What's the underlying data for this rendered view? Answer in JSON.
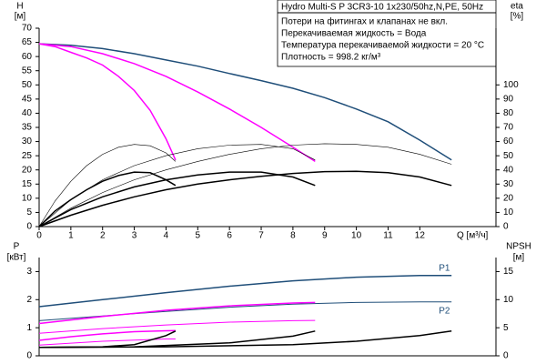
{
  "chart_data": [
    {
      "type": "line",
      "title": "Hydro Multi-S P 3CR3-10 1x230/50hz,N,PE, 50Hz",
      "notes": [
        "Потери на фитингах и клапанах не вкл.",
        "Перекачиваемая жидкость = Вода",
        "Температура перекачиваемой жидкости = 20 °C",
        "Плотность = 998.2 кг/м³"
      ],
      "ylabel": [
        "H",
        "[м]"
      ],
      "y2label": [
        "eta",
        "[%]"
      ],
      "xlabel": "Q [м³/ч]",
      "xlim": [
        0,
        14.4
      ],
      "xticks": [
        0,
        1,
        2,
        3,
        4,
        5,
        6,
        7,
        8,
        9,
        10,
        11,
        12
      ],
      "ylim": [
        0,
        70
      ],
      "yticks": [
        0,
        5,
        10,
        15,
        20,
        25,
        30,
        35,
        40,
        45,
        50,
        55,
        60,
        65,
        70
      ],
      "y2lim": [
        0,
        140
      ],
      "y2ticks": [
        0,
        10,
        20,
        30,
        40,
        50,
        60,
        70,
        80,
        90,
        100
      ],
      "series": [
        {
          "color": "#1f4e79",
          "width": 1.5,
          "x": [
            0,
            1,
            2,
            3,
            4,
            5,
            6,
            7,
            8,
            9,
            10,
            11,
            12,
            13
          ],
          "values": [
            64.5,
            64,
            62.8,
            61,
            58.8,
            56.6,
            54,
            51.5,
            48.8,
            45.5,
            41.5,
            37,
            30.5,
            23.5
          ]
        },
        {
          "color": "#ff00ff",
          "width": 1.5,
          "x": [
            0,
            1,
            2,
            3,
            4,
            5,
            6,
            7,
            8,
            8.7
          ],
          "values": [
            64.5,
            63.5,
            61,
            57.5,
            53,
            47.5,
            41.5,
            35,
            28,
            23
          ]
        },
        {
          "color": "#ff00ff",
          "width": 1.5,
          "x": [
            0,
            0.5,
            1,
            1.5,
            2,
            2.5,
            3,
            3.5,
            4,
            4.3
          ],
          "values": [
            64.5,
            63.5,
            61.5,
            59.5,
            57,
            53,
            48,
            41,
            31,
            23.5
          ]
        },
        {
          "color": "#000000",
          "width": 0.6,
          "axis": "y2",
          "x": [
            0,
            1,
            2,
            3,
            4,
            5,
            6,
            7,
            8,
            9,
            10,
            11,
            12,
            13
          ],
          "values": [
            0,
            13,
            24,
            33,
            40,
            46,
            51,
            55,
            57.5,
            58.5,
            58,
            56,
            51,
            44
          ]
        },
        {
          "color": "#000000",
          "width": 0.6,
          "axis": "y2",
          "x": [
            0,
            1,
            2,
            3,
            4,
            5,
            6,
            7,
            8,
            8.7
          ],
          "values": [
            0,
            19,
            33,
            43,
            50,
            55,
            57.5,
            58,
            55,
            47
          ]
        },
        {
          "color": "#000000",
          "width": 0.6,
          "axis": "y2",
          "x": [
            0,
            0.5,
            1,
            1.5,
            2,
            2.5,
            3,
            3.5,
            4,
            4.3
          ],
          "values": [
            0,
            18,
            32,
            43,
            51,
            56,
            58,
            57,
            52,
            46
          ]
        },
        {
          "color": "#000000",
          "width": 1.5,
          "axis": "y2",
          "x": [
            0,
            1,
            2,
            3,
            4,
            5,
            6,
            7,
            8,
            9,
            10,
            11,
            12,
            13
          ],
          "values": [
            0,
            8,
            15,
            21,
            26,
            30,
            33,
            35.5,
            37.5,
            38.8,
            39,
            38,
            35,
            29
          ]
        },
        {
          "color": "#000000",
          "width": 1.5,
          "axis": "y2",
          "x": [
            0,
            1,
            2,
            3,
            4,
            5,
            6,
            7,
            8,
            8.7
          ],
          "values": [
            0,
            12,
            21,
            28,
            33,
            36.5,
            38.5,
            38.5,
            35,
            29
          ]
        },
        {
          "color": "#000000",
          "width": 1.5,
          "axis": "y2",
          "x": [
            0,
            0.5,
            1,
            1.5,
            2,
            2.5,
            3,
            3.5,
            4,
            4.3
          ],
          "values": [
            0,
            11,
            19,
            26,
            32,
            36,
            38.5,
            38,
            33,
            29
          ]
        }
      ]
    },
    {
      "type": "line",
      "ylabel": [
        "P",
        "[кВт]"
      ],
      "y2label": [
        "NPSH",
        "[м]"
      ],
      "xlim": [
        0,
        14.4
      ],
      "ylim": [
        0,
        3.5
      ],
      "yticks": [
        0,
        1,
        2,
        3
      ],
      "y2lim": [
        0,
        17.5
      ],
      "y2ticks": [
        0,
        5,
        10,
        15
      ],
      "series": [
        {
          "name": "P1",
          "color": "#1f4e79",
          "width": 1.5,
          "x": [
            0,
            2,
            4,
            6,
            8,
            10,
            12,
            13
          ],
          "values": [
            1.75,
            2.0,
            2.25,
            2.48,
            2.67,
            2.8,
            2.86,
            2.86
          ]
        },
        {
          "name": "P2",
          "color": "#1f4e79",
          "width": 1,
          "x": [
            0,
            2,
            4,
            6,
            8,
            10,
            12,
            13
          ],
          "values": [
            1.25,
            1.42,
            1.58,
            1.73,
            1.84,
            1.9,
            1.92,
            1.92
          ]
        },
        {
          "color": "#ff00ff",
          "width": 1.5,
          "x": [
            0,
            2,
            4,
            6,
            8,
            8.7
          ],
          "values": [
            1.15,
            1.4,
            1.62,
            1.78,
            1.88,
            1.9
          ]
        },
        {
          "color": "#ff00ff",
          "width": 1,
          "x": [
            0,
            2,
            4,
            6,
            8,
            8.7
          ],
          "values": [
            0.8,
            0.97,
            1.1,
            1.2,
            1.25,
            1.26
          ]
        },
        {
          "color": "#ff00ff",
          "width": 1.5,
          "x": [
            0,
            1,
            2,
            3,
            4,
            4.3
          ],
          "values": [
            0.55,
            0.68,
            0.78,
            0.86,
            0.89,
            0.9
          ]
        },
        {
          "color": "#ff00ff",
          "width": 1,
          "x": [
            0,
            2,
            4,
            4.3
          ],
          "values": [
            0.38,
            0.52,
            0.6,
            0.6
          ]
        },
        {
          "color": "#000000",
          "width": 1.5,
          "axis": "y2",
          "x": [
            0,
            4,
            8,
            10,
            12,
            13
          ],
          "values": [
            1.5,
            1.6,
            2,
            2.6,
            3.6,
            4.4
          ]
        },
        {
          "color": "#000000",
          "width": 1.5,
          "axis": "y2",
          "x": [
            0,
            3,
            6,
            8,
            8.7
          ],
          "values": [
            1.5,
            1.6,
            2.3,
            3.5,
            4.4
          ]
        },
        {
          "color": "#000000",
          "width": 1.5,
          "axis": "y2",
          "x": [
            0,
            2,
            3,
            4,
            4.3
          ],
          "values": [
            1.5,
            1.6,
            2,
            3.6,
            4.4
          ]
        }
      ]
    }
  ]
}
